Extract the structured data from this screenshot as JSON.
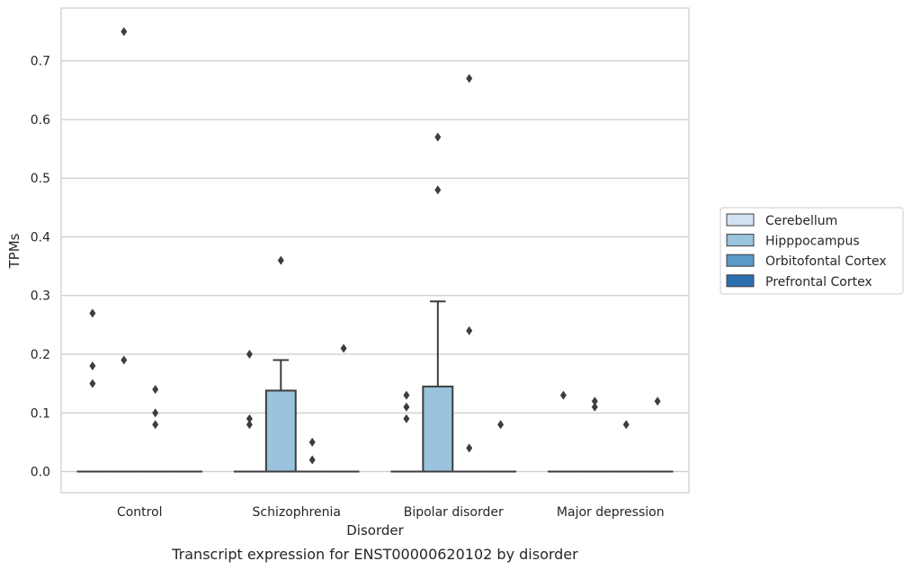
{
  "chart_data": {
    "type": "box",
    "caption": "Transcript expression for ENST00000620102 by disorder",
    "xlabel": "Disorder",
    "ylabel": "TPMs",
    "ylim": [
      -0.036,
      0.79
    ],
    "yticks": [
      0.0,
      0.1,
      0.2,
      0.3,
      0.4,
      0.5,
      0.6,
      0.7
    ],
    "ytick_labels": [
      "0.0",
      "0.1",
      "0.2",
      "0.3",
      "0.4",
      "0.5",
      "0.6",
      "0.7"
    ],
    "grid": "horizontal",
    "legend_placement": "right",
    "categories": [
      "Control",
      "Schizophrenia",
      "Bipolar disorder",
      "Major depression"
    ],
    "series": [
      {
        "name": "Cerebellum",
        "color": "#d3e2f2",
        "boxes": [
          {
            "q1": 0,
            "median": 0,
            "q3": 0,
            "whisker_low": 0,
            "whisker_high": 0,
            "outliers": [
              0.27,
              0.18,
              0.15
            ]
          },
          {
            "q1": 0,
            "median": 0,
            "q3": 0,
            "whisker_low": 0,
            "whisker_high": 0,
            "outliers": [
              0.2,
              0.09,
              0.08
            ]
          },
          {
            "q1": 0,
            "median": 0,
            "q3": 0,
            "whisker_low": 0,
            "whisker_high": 0,
            "outliers": [
              0.13,
              0.11,
              0.09
            ]
          },
          {
            "q1": 0,
            "median": 0,
            "q3": 0,
            "whisker_low": 0,
            "whisker_high": 0,
            "outliers": [
              0.13
            ]
          }
        ]
      },
      {
        "name": "Hipppocampus",
        "color": "#9ac3de",
        "boxes": [
          {
            "q1": 0,
            "median": 0,
            "q3": 0,
            "whisker_low": 0,
            "whisker_high": 0,
            "outliers": [
              0.75,
              0.19
            ]
          },
          {
            "q1": 0,
            "median": 0,
            "q3": 0.138,
            "whisker_low": 0,
            "whisker_high": 0.19,
            "outliers": [
              0.36
            ]
          },
          {
            "q1": 0,
            "median": 0,
            "q3": 0.145,
            "whisker_low": 0,
            "whisker_high": 0.29,
            "outliers": [
              0.57,
              0.48
            ]
          },
          {
            "q1": 0,
            "median": 0,
            "q3": 0,
            "whisker_low": 0,
            "whisker_high": 0,
            "outliers": [
              0.12,
              0.11
            ]
          }
        ]
      },
      {
        "name": "Orbitofontal Cortex",
        "color": "#5a9ac9",
        "boxes": [
          {
            "q1": 0,
            "median": 0,
            "q3": 0,
            "whisker_low": 0,
            "whisker_high": 0,
            "outliers": [
              0.14,
              0.1,
              0.08
            ]
          },
          {
            "q1": 0,
            "median": 0,
            "q3": 0,
            "whisker_low": 0,
            "whisker_high": 0,
            "outliers": [
              0.05,
              0.02
            ]
          },
          {
            "q1": 0,
            "median": 0,
            "q3": 0,
            "whisker_low": 0,
            "whisker_high": 0,
            "outliers": [
              0.67,
              0.24,
              0.04
            ]
          },
          {
            "q1": 0,
            "median": 0,
            "q3": 0,
            "whisker_low": 0,
            "whisker_high": 0,
            "outliers": [
              0.08
            ]
          }
        ]
      },
      {
        "name": "Prefrontal Cortex",
        "color": "#2c6fae",
        "boxes": [
          {
            "q1": 0,
            "median": 0,
            "q3": 0,
            "whisker_low": 0,
            "whisker_high": 0,
            "outliers": []
          },
          {
            "q1": 0,
            "median": 0,
            "q3": 0,
            "whisker_low": 0,
            "whisker_high": 0,
            "outliers": [
              0.21
            ]
          },
          {
            "q1": 0,
            "median": 0,
            "q3": 0,
            "whisker_low": 0,
            "whisker_high": 0,
            "outliers": [
              0.08
            ]
          },
          {
            "q1": 0,
            "median": 0,
            "q3": 0,
            "whisker_low": 0,
            "whisker_high": 0,
            "outliers": [
              0.12
            ]
          }
        ]
      }
    ]
  }
}
